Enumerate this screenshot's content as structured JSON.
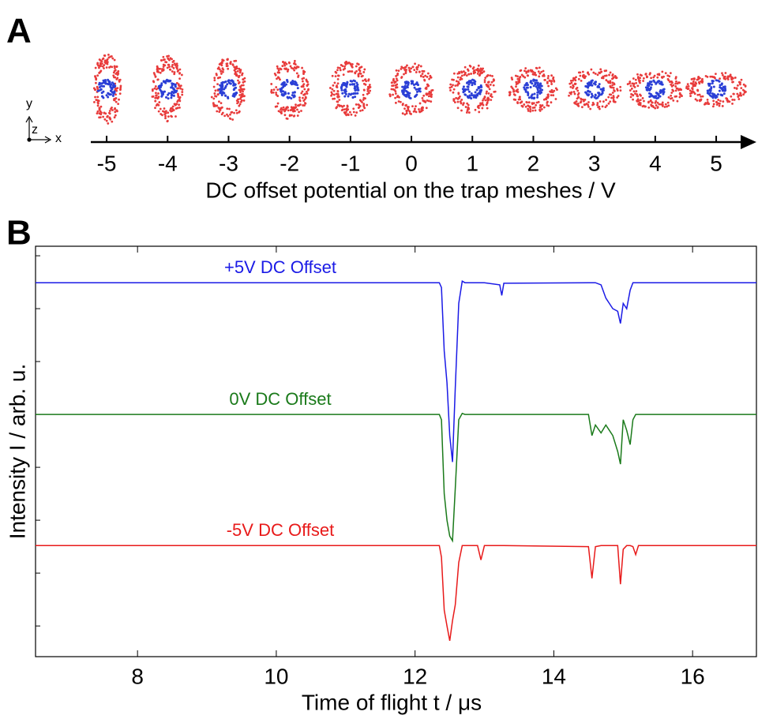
{
  "chart_data": [
    {
      "type": "ions",
      "panel": "A",
      "axis_labels": [
        "y",
        "z",
        "x"
      ],
      "xlabel": "DC offset potential on the trap meshes / V",
      "xlim": [
        -5.26,
        5.66
      ],
      "xticks": [
        -5,
        -4,
        -3,
        -2,
        -1,
        0,
        1,
        2,
        3,
        4,
        5
      ],
      "colors": [
        "#e83b3b",
        "#2b3fd6"
      ]
    },
    {
      "type": "line",
      "panel": "B",
      "xlabel": "Time of flight t / μs",
      "ylabel": "Intensity I / arb. u.",
      "xlim": [
        6.53,
        16.92
      ],
      "xticks": [
        8,
        10,
        12,
        14,
        16
      ],
      "ylim": [
        -0.58,
        7.18
      ],
      "yticks": [
        0,
        1,
        2,
        3,
        4,
        5,
        6,
        7
      ],
      "x": [
        6.53,
        12.35,
        12.38,
        12.42,
        12.46,
        12.5,
        12.54,
        12.58,
        12.63,
        12.68,
        12.72,
        12.9,
        12.95,
        13.0,
        13.22,
        13.25,
        13.28,
        14.5,
        14.55,
        14.6,
        14.68,
        14.75,
        14.8,
        14.85,
        14.92,
        14.96,
        15.0,
        15.05,
        15.1,
        15.14,
        15.18,
        15.22,
        16.92
      ],
      "series": [
        {
          "name": "+5V DC Offset",
          "color": "#1a1ae6",
          "values": [
            6.49,
            6.49,
            6.4,
            5.2,
            4.6,
            3.6,
            3.1,
            4.5,
            6.1,
            6.52,
            6.49,
            6.49,
            6.49,
            6.49,
            6.45,
            6.25,
            6.48,
            6.49,
            6.49,
            6.49,
            6.45,
            6.2,
            6.1,
            6.0,
            5.95,
            5.72,
            6.1,
            6.0,
            6.35,
            6.49,
            6.49,
            6.49,
            6.49
          ]
        },
        {
          "name": "0V DC Offset",
          "color": "#1a7a1a",
          "values": [
            4.0,
            4.0,
            3.9,
            2.5,
            2.0,
            1.7,
            1.61,
            2.6,
            3.9,
            4.02,
            4.0,
            4.0,
            4.0,
            4.0,
            4.0,
            4.0,
            4.0,
            4.0,
            3.6,
            3.8,
            3.65,
            3.8,
            3.7,
            3.6,
            3.3,
            3.06,
            3.9,
            3.7,
            3.43,
            3.9,
            4.0,
            4.0,
            4.0
          ]
        },
        {
          "name": "-5V DC Offset",
          "color": "#e81a1a",
          "values": [
            1.52,
            1.52,
            1.3,
            0.3,
            0.0,
            -0.28,
            0.1,
            0.4,
            1.2,
            1.52,
            1.52,
            1.52,
            1.25,
            1.52,
            1.52,
            1.52,
            1.52,
            1.5,
            0.9,
            1.5,
            1.52,
            1.52,
            1.52,
            1.52,
            1.52,
            0.79,
            1.45,
            1.52,
            1.52,
            1.5,
            1.35,
            1.52,
            1.52
          ]
        }
      ]
    }
  ]
}
